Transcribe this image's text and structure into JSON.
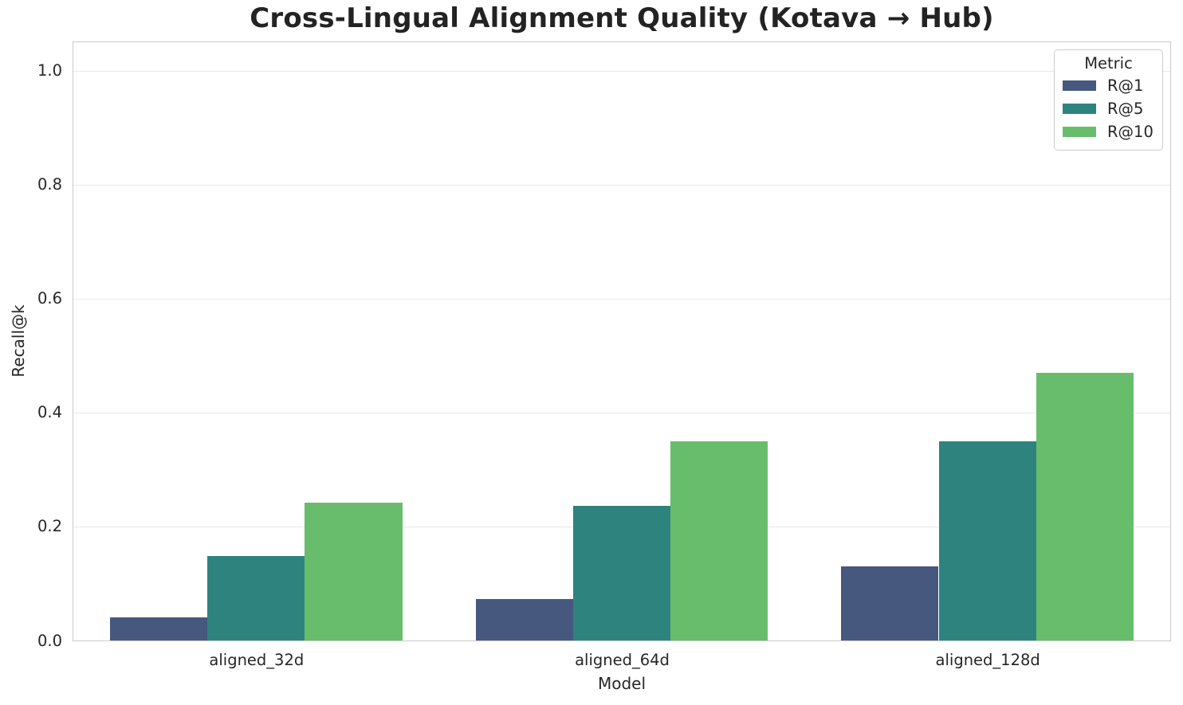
{
  "chart_data": {
    "type": "bar",
    "title": "Cross-Lingual Alignment Quality (Kotava → Hub)",
    "xlabel": "Model",
    "ylabel": "Recall@k",
    "categories": [
      "aligned_32d",
      "aligned_64d",
      "aligned_128d"
    ],
    "series": [
      {
        "name": "R@1",
        "color": "#46587e",
        "values": [
          0.04,
          0.073,
          0.13
        ]
      },
      {
        "name": "R@5",
        "color": "#2e837f",
        "values": [
          0.148,
          0.236,
          0.35
        ]
      },
      {
        "name": "R@10",
        "color": "#68bd6c",
        "values": [
          0.242,
          0.35,
          0.47
        ]
      }
    ],
    "legend_title": "Metric",
    "legend_position": "upper right",
    "ylim": [
      0,
      1.05
    ],
    "yticks": [
      0.0,
      0.2,
      0.4,
      0.6,
      0.8,
      1.0
    ],
    "ytick_labels": [
      "0.0",
      "0.2",
      "0.4",
      "0.6",
      "0.8",
      "1.0"
    ],
    "grid": "horizontal",
    "bar_group_width_fraction": 0.8
  },
  "colors": {
    "text": "#262626",
    "grid": "#e9e9e9",
    "spine": "#cbcbcb",
    "background": "#ffffff"
  }
}
